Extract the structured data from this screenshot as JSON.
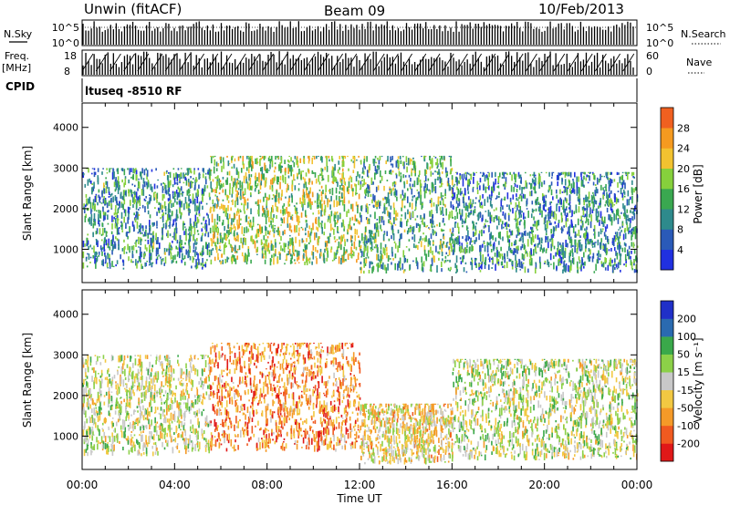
{
  "header": {
    "station": "Unwin (fitACF)",
    "beam": "Beam 09",
    "date": "10/Feb/2013"
  },
  "strips": {
    "nsky_label": "N.Sky",
    "nsky_ticks": [
      "10^5",
      "10^0"
    ],
    "nsearch_label": "N.Search",
    "nsearch_ticks": [
      "10^5",
      "10^0"
    ],
    "freq_label": "Freq.",
    "freq_unit": "[MHz]",
    "freq_ticks": [
      "18",
      "8"
    ],
    "nave_label": "Nave",
    "nave_ticks": [
      "60",
      "0"
    ],
    "cpid_label": "CPID",
    "cpid_text": "ltuseq -8510 RF"
  },
  "axes": {
    "ylabel": "Slant Range [km]",
    "yticks": [
      "1000",
      "2000",
      "3000",
      "4000"
    ],
    "xlabel": "Time UT",
    "xticks": [
      "00:00",
      "04:00",
      "08:00",
      "12:00",
      "16:00",
      "20:00",
      "00:00"
    ]
  },
  "colorbars": {
    "power_label": "Power [dB]",
    "power_ticks": [
      "4",
      "8",
      "12",
      "16",
      "20",
      "24",
      "28"
    ],
    "velocity_label": "Velocity [m s⁻¹]",
    "velocity_ticks": [
      "-200",
      "-100",
      "-50",
      "-15",
      "15",
      "50",
      "100",
      "200"
    ]
  },
  "chart_data": [
    {
      "type": "heatmap",
      "name": "power",
      "x_range_hours": [
        0,
        24
      ],
      "y_range_km": [
        180,
        4600
      ],
      "color_range_db": [
        0,
        32
      ],
      "colors": [
        "#2030e0",
        "#2a5ab8",
        "#2e8a8c",
        "#3aa850",
        "#86d03c",
        "#f2c230",
        "#f59a20",
        "#f06020",
        "#e02020"
      ],
      "echo_regions": [
        {
          "t_start": 0.0,
          "t_end": 5.5,
          "r_min": 500,
          "r_max": 3000,
          "db_mean": 10
        },
        {
          "t_start": 5.5,
          "t_end": 12.0,
          "r_min": 600,
          "r_max": 3300,
          "db_mean": 16
        },
        {
          "t_start": 12.0,
          "t_end": 16.0,
          "r_min": 400,
          "r_max": 3300,
          "db_mean": 12
        },
        {
          "t_start": 16.0,
          "t_end": 24.0,
          "r_min": 400,
          "r_max": 2900,
          "db_mean": 9
        }
      ]
    },
    {
      "type": "heatmap",
      "name": "velocity",
      "x_range_hours": [
        0,
        24
      ],
      "y_range_km": [
        180,
        4600
      ],
      "color_range_ms": [
        -250,
        250
      ],
      "colors": [
        "#e01818",
        "#f05a20",
        "#f59a28",
        "#f2c842",
        "#c8c8c8",
        "#8cd048",
        "#3aa84a",
        "#2a6ab0",
        "#2030c8"
      ],
      "echo_regions": [
        {
          "t_start": 0.0,
          "t_end": 5.5,
          "r_min": 500,
          "r_max": 3000,
          "v_mean": 0
        },
        {
          "t_start": 5.5,
          "t_end": 12.0,
          "r_min": 600,
          "r_max": 3300,
          "v_mean": -120
        },
        {
          "t_start": 12.0,
          "t_end": 16.0,
          "r_min": 300,
          "r_max": 1800,
          "v_mean": -40
        },
        {
          "t_start": 16.0,
          "t_end": 24.0,
          "r_min": 400,
          "r_max": 2900,
          "v_mean": 10
        }
      ]
    }
  ]
}
